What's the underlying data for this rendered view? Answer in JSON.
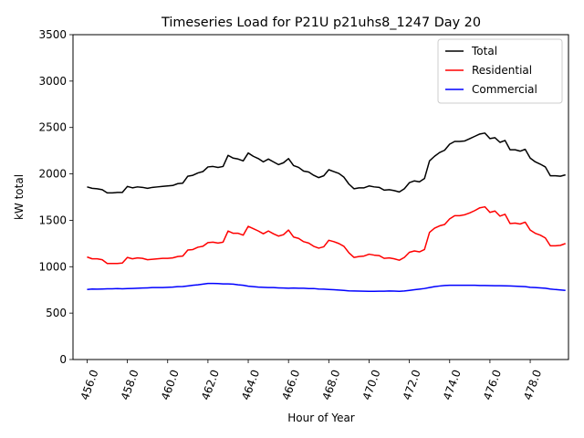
{
  "chart_data": {
    "type": "line",
    "title": "Timeseries Load for P21U p21uhs8_1247  Day 20",
    "xlabel": "Hour of Year",
    "ylabel": "kW total",
    "xlim": [
      455.3,
      479.9
    ],
    "ylim": [
      0,
      3500
    ],
    "xticks": [
      456,
      458,
      460,
      462,
      464,
      466,
      468,
      470,
      472,
      474,
      476,
      478
    ],
    "xtick_labels": [
      "456.0",
      "458.0",
      "460.0",
      "462.0",
      "464.0",
      "466.0",
      "468.0",
      "470.0",
      "472.0",
      "474.0",
      "476.0",
      "478.0"
    ],
    "yticks": [
      0,
      500,
      1000,
      1500,
      2000,
      2500,
      3000,
      3500
    ],
    "ytick_labels": [
      "0",
      "500",
      "1000",
      "1500",
      "2000",
      "2500",
      "3000",
      "3500"
    ],
    "grid": false,
    "legend_position": "top-right",
    "x": [
      456.0,
      456.25,
      456.5,
      456.75,
      457.0,
      457.25,
      457.5,
      457.75,
      458.0,
      458.25,
      458.5,
      458.75,
      459.0,
      459.25,
      459.5,
      459.75,
      460.0,
      460.25,
      460.5,
      460.75,
      461.0,
      461.25,
      461.5,
      461.75,
      462.0,
      462.25,
      462.5,
      462.75,
      463.0,
      463.25,
      463.5,
      463.75,
      464.0,
      464.25,
      464.5,
      464.75,
      465.0,
      465.25,
      465.5,
      465.75,
      466.0,
      466.25,
      466.5,
      466.75,
      467.0,
      467.25,
      467.5,
      467.75,
      468.0,
      468.25,
      468.5,
      468.75,
      469.0,
      469.25,
      469.5,
      469.75,
      470.0,
      470.25,
      470.5,
      470.75,
      471.0,
      471.25,
      471.5,
      471.75,
      472.0,
      472.25,
      472.5,
      472.75,
      473.0,
      473.25,
      473.5,
      473.75,
      474.0,
      474.25,
      474.5,
      474.75,
      475.0,
      475.25,
      475.5,
      475.75,
      476.0,
      476.25,
      476.5,
      476.75,
      477.0,
      477.25,
      477.5,
      477.75,
      478.0,
      478.25,
      478.5,
      478.75,
      479.0,
      479.25,
      479.5,
      479.75
    ],
    "series": [
      {
        "name": "Total",
        "color": "#000000",
        "values": [
          1860,
          1845,
          1840,
          1830,
          1795,
          1795,
          1800,
          1800,
          1865,
          1850,
          1860,
          1855,
          1845,
          1855,
          1860,
          1865,
          1870,
          1875,
          1895,
          1900,
          1975,
          1985,
          2010,
          2025,
          2075,
          2080,
          2070,
          2080,
          2200,
          2170,
          2160,
          2140,
          2225,
          2190,
          2165,
          2130,
          2160,
          2130,
          2100,
          2120,
          2165,
          2090,
          2070,
          2030,
          2020,
          1985,
          1960,
          1980,
          2045,
          2025,
          2005,
          1965,
          1890,
          1840,
          1850,
          1850,
          1870,
          1860,
          1855,
          1825,
          1830,
          1820,
          1805,
          1840,
          1905,
          1925,
          1915,
          1950,
          2140,
          2190,
          2230,
          2255,
          2320,
          2350,
          2350,
          2355,
          2380,
          2405,
          2430,
          2440,
          2380,
          2390,
          2340,
          2360,
          2260,
          2260,
          2245,
          2265,
          2170,
          2130,
          2105,
          2075,
          1980,
          1980,
          1975,
          1990
        ]
      },
      {
        "name": "Residential",
        "color": "#ff0000",
        "values": [
          1105,
          1085,
          1085,
          1075,
          1035,
          1035,
          1035,
          1040,
          1100,
          1085,
          1095,
          1090,
          1075,
          1080,
          1085,
          1090,
          1090,
          1095,
          1110,
          1115,
          1180,
          1185,
          1210,
          1220,
          1260,
          1265,
          1255,
          1265,
          1385,
          1360,
          1360,
          1340,
          1435,
          1410,
          1385,
          1355,
          1385,
          1355,
          1330,
          1345,
          1395,
          1320,
          1305,
          1270,
          1255,
          1220,
          1200,
          1215,
          1285,
          1270,
          1250,
          1220,
          1150,
          1100,
          1110,
          1115,
          1135,
          1125,
          1120,
          1090,
          1095,
          1085,
          1070,
          1100,
          1155,
          1170,
          1160,
          1185,
          1370,
          1415,
          1440,
          1455,
          1515,
          1550,
          1550,
          1560,
          1580,
          1605,
          1635,
          1645,
          1585,
          1600,
          1545,
          1565,
          1465,
          1470,
          1460,
          1480,
          1395,
          1360,
          1340,
          1310,
          1225,
          1225,
          1230,
          1250
        ]
      },
      {
        "name": "Commercial",
        "color": "#0000ff",
        "values": [
          755,
          760,
          758,
          760,
          762,
          762,
          764,
          762,
          765,
          766,
          768,
          770,
          772,
          775,
          775,
          776,
          778,
          780,
          785,
          786,
          793,
          800,
          805,
          812,
          820,
          820,
          818,
          815,
          815,
          812,
          805,
          800,
          790,
          785,
          780,
          778,
          775,
          775,
          772,
          770,
          768,
          770,
          768,
          768,
          765,
          765,
          760,
          758,
          755,
          752,
          748,
          745,
          740,
          738,
          737,
          736,
          735,
          735,
          736,
          736,
          738,
          737,
          735,
          738,
          745,
          752,
          758,
          765,
          775,
          785,
          792,
          798,
          800,
          800,
          800,
          800,
          800,
          800,
          798,
          797,
          796,
          795,
          795,
          794,
          793,
          790,
          788,
          785,
          778,
          776,
          772,
          768,
          760,
          754,
          750,
          745
        ]
      }
    ]
  }
}
